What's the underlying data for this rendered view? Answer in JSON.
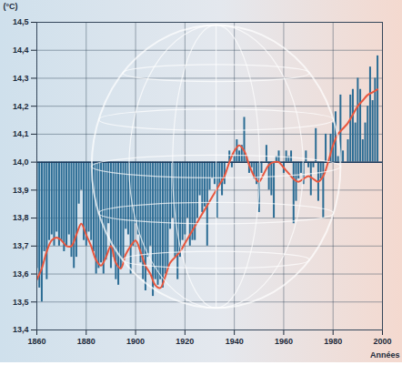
{
  "chart_data": {
    "type": "bar",
    "x_label": "Années",
    "y_label": "(°C)",
    "xlim": [
      1860,
      2000
    ],
    "xticks": [
      1860,
      1880,
      1900,
      1920,
      1940,
      1960,
      1980,
      2000
    ],
    "ylim": [
      13.4,
      14.5
    ],
    "yticks": [
      {
        "value": 13.4,
        "label": "13,4"
      },
      {
        "value": 13.5,
        "label": "13,5"
      },
      {
        "value": 13.6,
        "label": "13,6"
      },
      {
        "value": 13.7,
        "label": "13,7"
      },
      {
        "value": 13.8,
        "label": "13,8"
      },
      {
        "value": 13.9,
        "label": "13,9"
      },
      {
        "value": 14.0,
        "label": "14,0"
      },
      {
        "value": 14.1,
        "label": "14,1"
      },
      {
        "value": 14.2,
        "label": "14,2"
      },
      {
        "value": 14.3,
        "label": "14,3"
      },
      {
        "value": 14.4,
        "label": "14,4"
      },
      {
        "value": 14.5,
        "label": "14,5"
      }
    ],
    "grid": true,
    "baseline": 14.0,
    "x": [
      1860,
      1861,
      1862,
      1863,
      1864,
      1865,
      1866,
      1867,
      1868,
      1869,
      1870,
      1871,
      1872,
      1873,
      1874,
      1875,
      1876,
      1877,
      1878,
      1879,
      1880,
      1881,
      1882,
      1883,
      1884,
      1885,
      1886,
      1887,
      1888,
      1889,
      1890,
      1891,
      1892,
      1893,
      1894,
      1895,
      1896,
      1897,
      1898,
      1899,
      1900,
      1901,
      1902,
      1903,
      1904,
      1905,
      1906,
      1907,
      1908,
      1909,
      1910,
      1911,
      1912,
      1913,
      1914,
      1915,
      1916,
      1917,
      1918,
      1919,
      1920,
      1921,
      1922,
      1923,
      1924,
      1925,
      1926,
      1927,
      1928,
      1929,
      1930,
      1931,
      1932,
      1933,
      1934,
      1935,
      1936,
      1937,
      1938,
      1939,
      1940,
      1941,
      1942,
      1943,
      1944,
      1945,
      1946,
      1947,
      1948,
      1949,
      1950,
      1951,
      1952,
      1953,
      1954,
      1955,
      1956,
      1957,
      1958,
      1959,
      1960,
      1961,
      1962,
      1963,
      1964,
      1965,
      1966,
      1967,
      1968,
      1969,
      1970,
      1971,
      1972,
      1973,
      1974,
      1975,
      1976,
      1977,
      1978,
      1979,
      1980,
      1981,
      1982,
      1983,
      1984,
      1985,
      1986,
      1987,
      1988,
      1989,
      1990,
      1991,
      1992,
      1993,
      1994,
      1995,
      1996,
      1997,
      1998
    ],
    "series": [
      {
        "type": "bar",
        "color": "#2b6c94",
        "values": [
          13.62,
          13.55,
          13.5,
          13.68,
          13.58,
          13.72,
          13.74,
          13.7,
          13.75,
          13.7,
          13.72,
          13.68,
          13.7,
          13.74,
          13.66,
          13.62,
          13.66,
          13.85,
          13.9,
          13.72,
          13.7,
          13.75,
          13.72,
          13.68,
          13.6,
          13.62,
          13.64,
          13.6,
          13.65,
          13.78,
          13.62,
          13.66,
          13.58,
          13.56,
          13.62,
          13.64,
          13.76,
          13.74,
          13.6,
          13.7,
          13.78,
          13.74,
          13.64,
          13.58,
          13.54,
          13.66,
          13.7,
          13.52,
          13.58,
          13.56,
          13.58,
          13.55,
          13.6,
          13.62,
          13.76,
          13.8,
          13.66,
          13.58,
          13.66,
          13.72,
          13.74,
          13.8,
          13.7,
          13.72,
          13.72,
          13.8,
          13.88,
          13.82,
          13.84,
          13.7,
          13.9,
          13.94,
          13.92,
          13.8,
          13.92,
          13.88,
          13.92,
          14.0,
          14.04,
          13.98,
          14.02,
          14.08,
          14.04,
          14.06,
          14.16,
          14.02,
          13.96,
          13.98,
          13.94,
          13.92,
          13.82,
          13.96,
          14.0,
          14.06,
          13.9,
          13.88,
          13.8,
          14.02,
          14.04,
          14.0,
          13.96,
          14.04,
          14.02,
          14.04,
          13.78,
          13.86,
          13.94,
          13.96,
          13.92,
          14.04,
          13.98,
          13.88,
          13.98,
          14.12,
          13.86,
          13.94,
          13.8,
          14.1,
          14.0,
          14.1,
          14.14,
          14.18,
          14.02,
          14.24,
          14.04,
          14.0,
          14.08,
          14.24,
          14.26,
          14.14,
          14.3,
          14.26,
          14.08,
          14.14,
          14.2,
          14.34,
          14.22,
          14.3,
          14.38
        ]
      },
      {
        "type": "line",
        "color": "#e8573f",
        "x": [
          1860,
          1862,
          1864,
          1866,
          1868,
          1870,
          1872,
          1874,
          1876,
          1878,
          1880,
          1882,
          1884,
          1886,
          1888,
          1890,
          1892,
          1894,
          1896,
          1898,
          1900,
          1902,
          1904,
          1906,
          1908,
          1910,
          1912,
          1914,
          1916,
          1918,
          1920,
          1922,
          1924,
          1926,
          1928,
          1930,
          1932,
          1934,
          1936,
          1938,
          1940,
          1942,
          1944,
          1946,
          1948,
          1950,
          1952,
          1954,
          1956,
          1958,
          1960,
          1962,
          1964,
          1966,
          1968,
          1970,
          1972,
          1974,
          1976,
          1978,
          1980,
          1982,
          1984,
          1986,
          1988,
          1990,
          1992,
          1994,
          1996,
          1998
        ],
        "values": [
          13.58,
          13.62,
          13.68,
          13.72,
          13.73,
          13.72,
          13.7,
          13.7,
          13.74,
          13.78,
          13.74,
          13.7,
          13.65,
          13.63,
          13.66,
          13.7,
          13.64,
          13.62,
          13.67,
          13.7,
          13.72,
          13.68,
          13.63,
          13.6,
          13.56,
          13.55,
          13.59,
          13.64,
          13.66,
          13.68,
          13.71,
          13.74,
          13.77,
          13.8,
          13.83,
          13.86,
          13.89,
          13.92,
          13.95,
          14.0,
          14.04,
          14.06,
          14.04,
          13.99,
          13.95,
          13.93,
          13.96,
          13.99,
          14.0,
          14.0,
          13.98,
          13.96,
          13.94,
          13.93,
          13.94,
          13.95,
          13.94,
          13.93,
          13.95,
          14.0,
          14.06,
          14.1,
          14.12,
          14.14,
          14.17,
          14.2,
          14.22,
          14.24,
          14.25,
          14.26
        ]
      }
    ]
  }
}
